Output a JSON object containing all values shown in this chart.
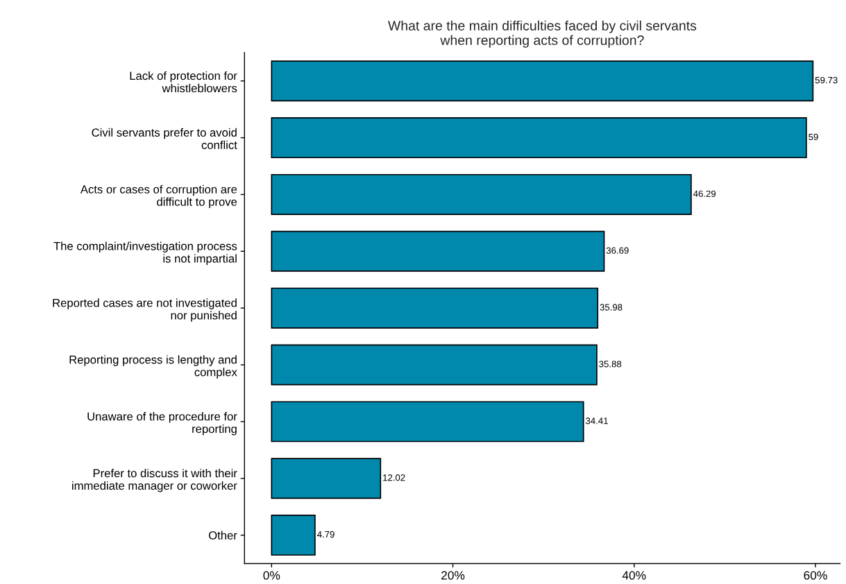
{
  "chart_data": {
    "type": "bar",
    "orientation": "horizontal",
    "title": "What are the main difficulties faced by civil servants\nwhen reporting acts of corruption?",
    "categories": [
      "Lack of protection for\nwhistleblowers",
      "Civil servants prefer to avoid\nconflict",
      "Acts or cases of corruption are\ndifficult to prove",
      "The complaint/investigation process\nis not impartial",
      "Reported cases are not investigated\nnor punished",
      "Reporting process is lengthy and\ncomplex",
      "Unaware of the procedure for\nreporting",
      "Prefer to discuss it with their\nimmediate manager or coworker",
      "Other"
    ],
    "values": [
      59.73,
      59,
      46.29,
      36.69,
      35.98,
      35.88,
      34.41,
      12.02,
      4.79
    ],
    "color": "#0088ad",
    "data_labels": true,
    "grid": false,
    "legend": false,
    "xlim": [
      -2.99,
      62.72
    ],
    "xticks": [
      {
        "value": 0,
        "label": "0%"
      },
      {
        "value": 20,
        "label": "20%"
      },
      {
        "value": 40,
        "label": "40%"
      },
      {
        "value": 60,
        "label": "60%"
      }
    ]
  }
}
